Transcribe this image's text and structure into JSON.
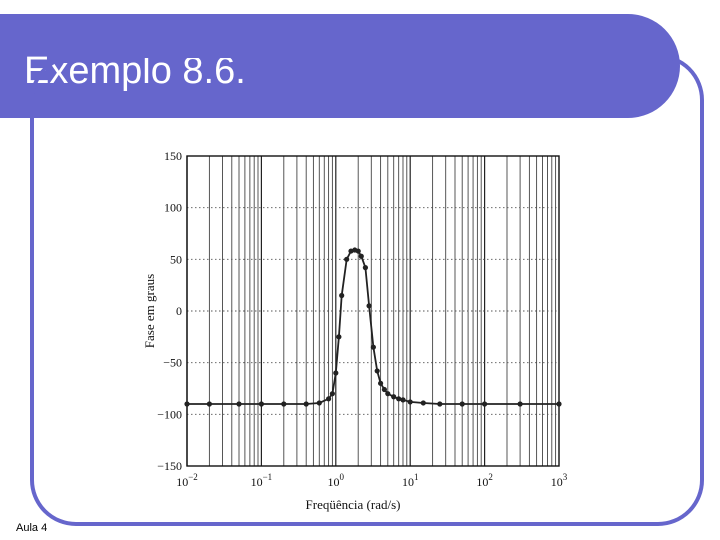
{
  "slide": {
    "title": "Exemplo 8.6.",
    "footer": "Aula 4",
    "accent_color": "#6666cc"
  },
  "chart_data": {
    "type": "line",
    "title": "",
    "xlabel": "Freqüência (rad/s)",
    "ylabel": "Fase em graus",
    "x_scale": "log",
    "xlim": [
      0.01,
      1000
    ],
    "ylim": [
      -150,
      150
    ],
    "grid": true,
    "x_ticks": [
      {
        "value": 0.01,
        "mantissa": "10",
        "exp": "−2"
      },
      {
        "value": 0.1,
        "mantissa": "10",
        "exp": "−1"
      },
      {
        "value": 1,
        "mantissa": "10",
        "exp": "0"
      },
      {
        "value": 10,
        "mantissa": "10",
        "exp": "1"
      },
      {
        "value": 100,
        "mantissa": "10",
        "exp": "2"
      },
      {
        "value": 1000,
        "mantissa": "10",
        "exp": "3"
      }
    ],
    "y_ticks": [
      {
        "value": 150,
        "label": "150"
      },
      {
        "value": 100,
        "label": "100"
      },
      {
        "value": 50,
        "label": "50"
      },
      {
        "value": 0,
        "label": "0"
      },
      {
        "value": -50,
        "label": "−50"
      },
      {
        "value": -100,
        "label": "−100"
      },
      {
        "value": -150,
        "label": "−150"
      }
    ],
    "series": [
      {
        "x": [
          0.01,
          0.02,
          0.05,
          0.1,
          0.2,
          0.4,
          0.6,
          0.8,
          0.9,
          1.0,
          1.1,
          1.2,
          1.4,
          1.6,
          1.8,
          2.0,
          2.2,
          2.5,
          2.8,
          3.2,
          3.6,
          4.0,
          4.5,
          5.0,
          6.0,
          7.0,
          8.0,
          10.0,
          15.0,
          25.0,
          50.0,
          100.0,
          300.0,
          1000.0
        ],
        "y": [
          -90,
          -90,
          -90,
          -90,
          -90,
          -90,
          -89,
          -85,
          -80,
          -60,
          -25,
          15,
          50,
          58,
          59,
          58,
          53,
          42,
          5,
          -35,
          -58,
          -70,
          -76,
          -80,
          -83,
          -85,
          -86,
          -88,
          -89,
          -90,
          -90,
          -90,
          -90,
          -90
        ],
        "marker": "circle",
        "color": "#222222"
      }
    ]
  }
}
